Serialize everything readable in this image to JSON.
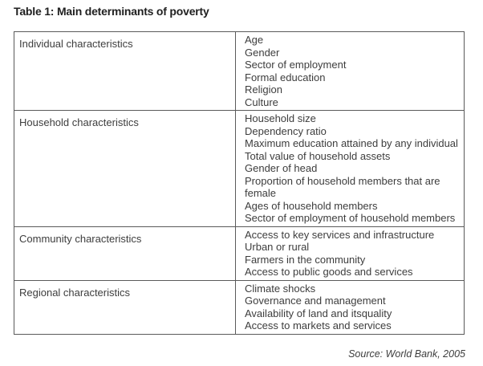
{
  "title": "Table 1: Main determinants of poverty",
  "source": "Source: World Bank, 2005",
  "table": {
    "rows": [
      {
        "label": "Individual characteristics",
        "items": [
          "Age",
          "Gender",
          "Sector of employment",
          "Formal education",
          "Religion",
          "Culture"
        ]
      },
      {
        "label": "Household characteristics",
        "items": [
          "Household size",
          "Dependency ratio",
          "Maximum education attained by any individual",
          "Total value of household assets",
          "Gender of head",
          "Proportion of household members that are female",
          "Ages of household members",
          "Sector of employment of household members"
        ]
      },
      {
        "label": "Community characteristics",
        "items": [
          "Access to key services and infrastructure",
          "Urban or rural",
          "Farmers in the community",
          "Access to public goods and services"
        ]
      },
      {
        "label": "Regional characteristics",
        "items": [
          "Climate shocks",
          "Governance and management",
          "Availability of land and itsquality",
          "Access to markets and services"
        ]
      }
    ]
  }
}
